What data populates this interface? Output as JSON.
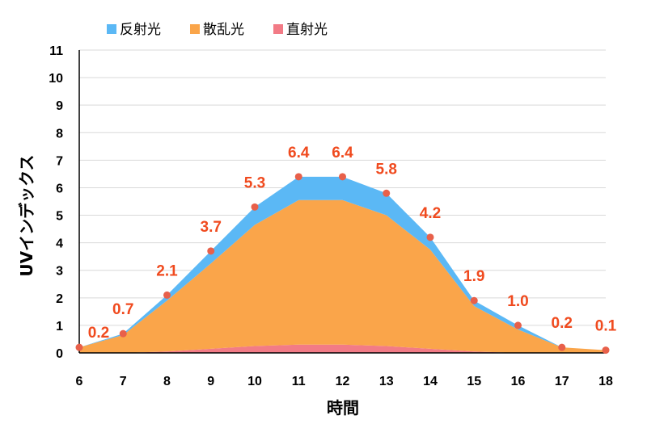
{
  "chart_data": {
    "type": "area",
    "stacked": true,
    "xlabel": "時間",
    "ylabel": "UVインデックス",
    "x": [
      6,
      7,
      8,
      9,
      10,
      11,
      12,
      13,
      14,
      15,
      16,
      17,
      18
    ],
    "xlim": [
      6,
      18
    ],
    "ylim": [
      0,
      11
    ],
    "yticks": [
      0,
      1,
      2,
      3,
      4,
      5,
      6,
      7,
      8,
      9,
      10,
      11
    ],
    "grid": true,
    "legend_position": "top",
    "series": [
      {
        "name": "直射光",
        "color": "#f27b86",
        "values": [
          0,
          0,
          0.05,
          0.15,
          0.25,
          0.3,
          0.3,
          0.25,
          0.15,
          0.05,
          0,
          0,
          0
        ]
      },
      {
        "name": "散乱光",
        "color": "#faa54a",
        "values": [
          0.2,
          0.65,
          1.85,
          3.1,
          4.4,
          5.25,
          5.25,
          4.75,
          3.6,
          1.65,
          0.85,
          0.2,
          0.1
        ]
      },
      {
        "name": "反射光",
        "color": "#5bb8f5",
        "values": [
          0,
          0.05,
          0.2,
          0.45,
          0.65,
          0.85,
          0.85,
          0.8,
          0.45,
          0.2,
          0.15,
          0,
          0
        ]
      }
    ],
    "legend_order": [
      "反射光",
      "散乱光",
      "直射光"
    ],
    "totals": [
      0.2,
      0.7,
      2.1,
      3.7,
      5.3,
      6.4,
      6.4,
      5.8,
      4.2,
      1.9,
      1.0,
      0.2,
      0.1
    ],
    "total_labels": [
      "0.2",
      "0.7",
      "2.1",
      "3.7",
      "5.3",
      "6.4",
      "6.4",
      "5.8",
      "4.2",
      "1.9",
      "1.0",
      "0.2",
      "0.1"
    ],
    "marker_color": "#e8604a",
    "label_color": "#f04a1e"
  }
}
